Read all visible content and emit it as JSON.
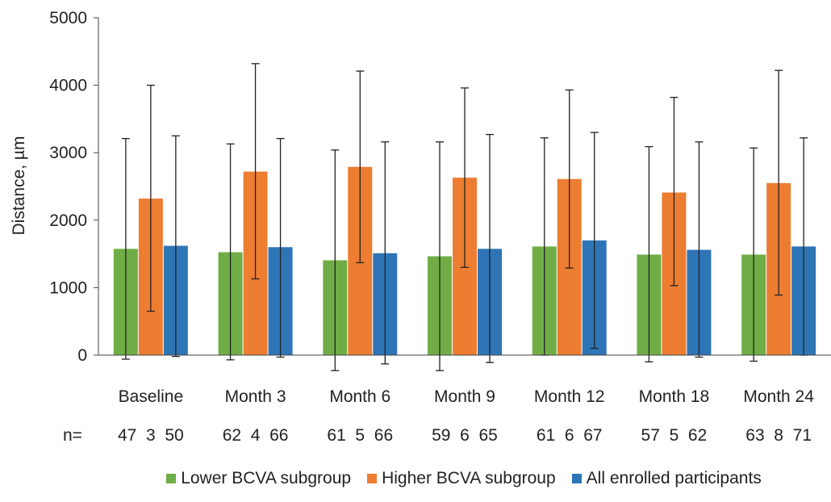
{
  "chart_data": {
    "type": "bar",
    "ylabel": "Distance, µm",
    "ylim": [
      0,
      5000
    ],
    "yticks": [
      0,
      1000,
      2000,
      3000,
      4000,
      5000
    ],
    "categories": [
      "Baseline",
      "Month 3",
      "Month 6",
      "Month 9",
      "Month 12",
      "Month 18",
      "Month 24"
    ],
    "n_label": "n=",
    "n_values": [
      [
        "47",
        "3",
        "50"
      ],
      [
        "62",
        "4",
        "66"
      ],
      [
        "61",
        "5",
        "66"
      ],
      [
        "59",
        "6",
        "65"
      ],
      [
        "61",
        "6",
        "67"
      ],
      [
        "57",
        "5",
        "62"
      ],
      [
        "63",
        "8",
        "71"
      ]
    ],
    "legend_position": "bottom",
    "grid": false,
    "series": [
      {
        "name": "Lower BCVA subgroup",
        "color": "#70ad47",
        "values": [
          1575,
          1525,
          1405,
          1465,
          1610,
          1490,
          1490
        ],
        "error_low": [
          -60,
          -70,
          -230,
          -230,
          0,
          -100,
          -90
        ],
        "error_high": [
          3210,
          3130,
          3040,
          3160,
          3220,
          3090,
          3070
        ]
      },
      {
        "name": "Higher BCVA subgroup",
        "color": "#ed7d31",
        "values": [
          2320,
          2720,
          2790,
          2630,
          2610,
          2410,
          2550
        ],
        "error_low": [
          650,
          1130,
          1370,
          1300,
          1290,
          1030,
          890
        ],
        "error_high": [
          4000,
          4320,
          4210,
          3960,
          3930,
          3820,
          4220
        ]
      },
      {
        "name": "All enrolled participants",
        "color": "#2e75b6",
        "values": [
          1620,
          1600,
          1510,
          1575,
          1700,
          1560,
          1610
        ],
        "error_low": [
          -20,
          -30,
          -130,
          -110,
          100,
          -30,
          0
        ],
        "error_high": [
          3250,
          3210,
          3160,
          3270,
          3300,
          3160,
          3220
        ]
      }
    ]
  }
}
